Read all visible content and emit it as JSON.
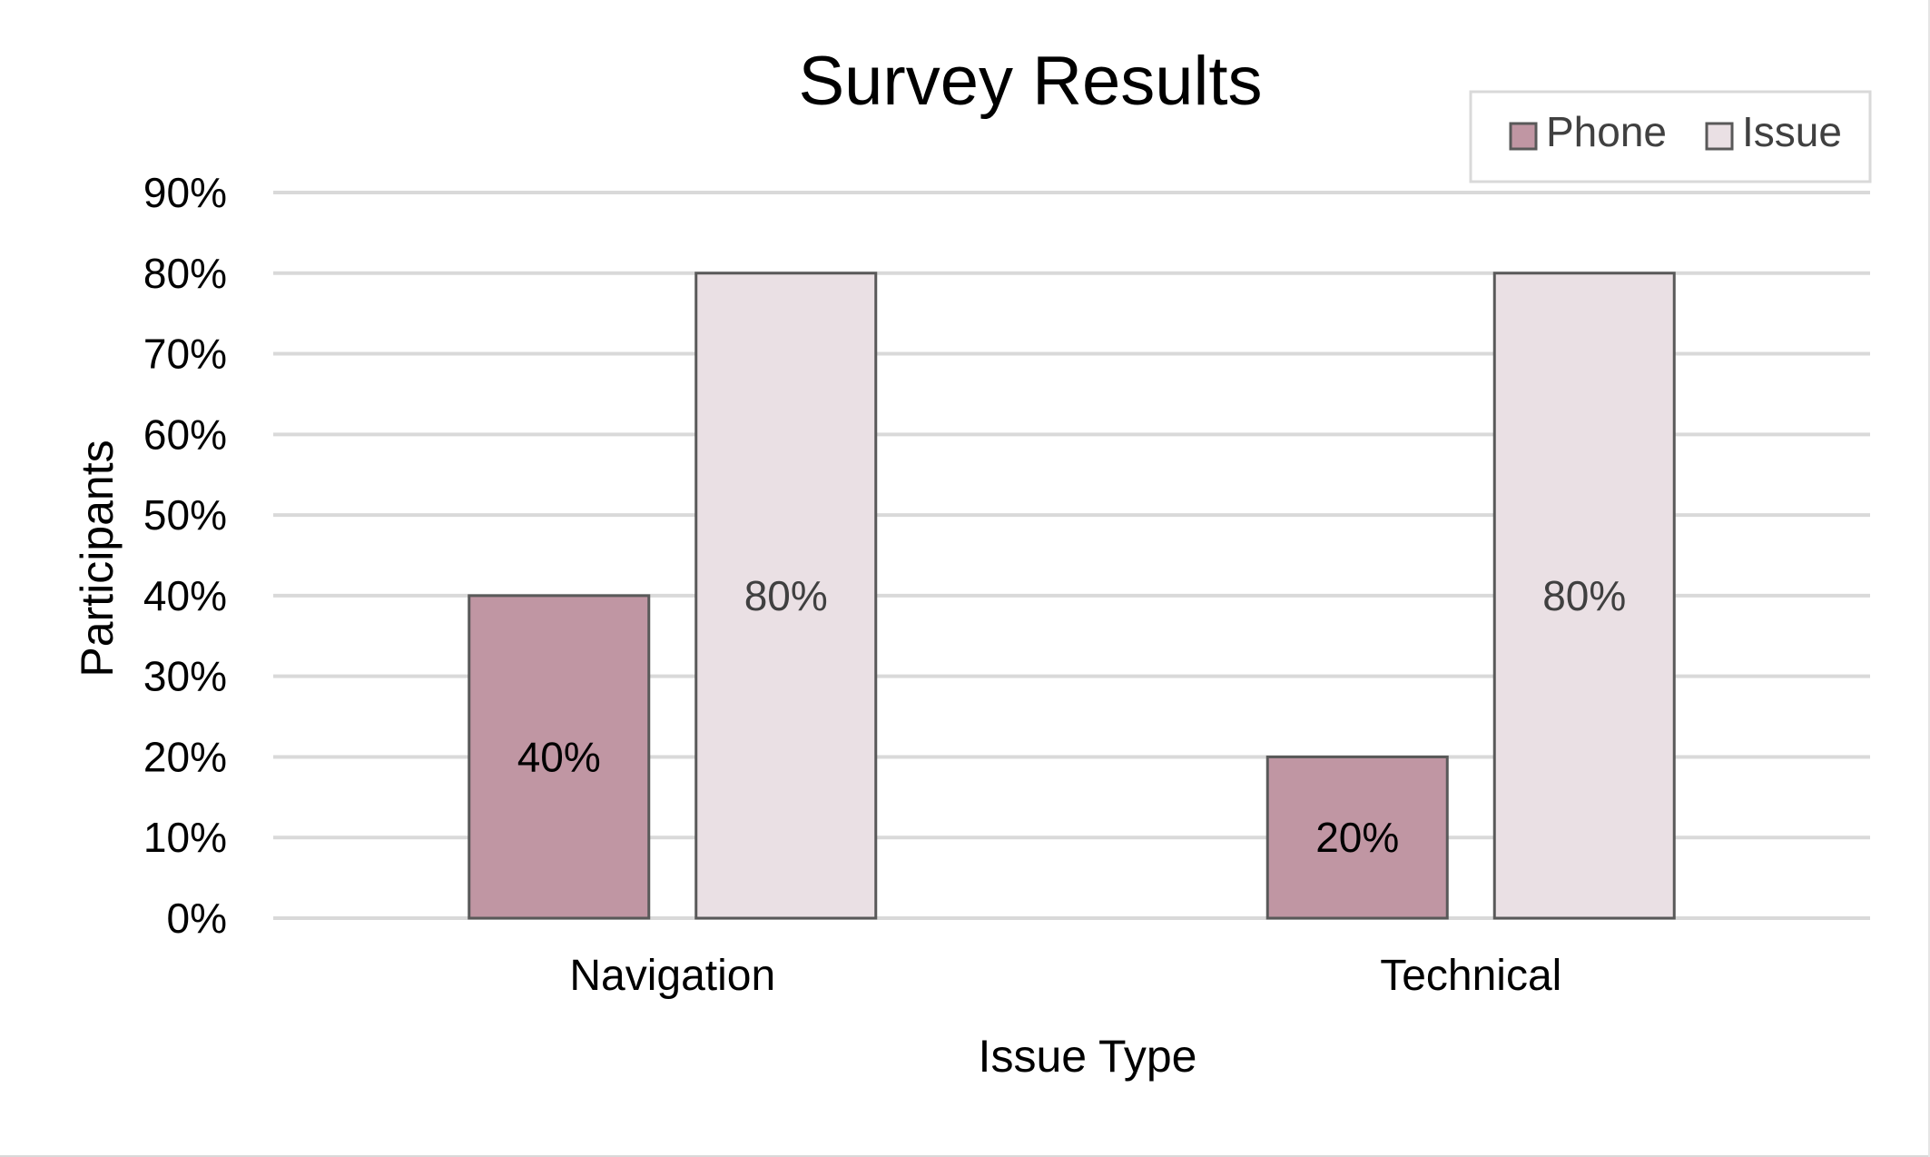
{
  "chart_data": {
    "type": "bar",
    "title": "Survey Results",
    "xlabel": "Issue Type",
    "ylabel": "Participants",
    "categories": [
      "Navigation",
      "Technical"
    ],
    "series": [
      {
        "name": "Phone",
        "values": [
          0.4,
          0.2
        ],
        "labels": [
          "40%",
          "20%"
        ],
        "color": "#c096a3",
        "label_color": "#000000"
      },
      {
        "name": "Issue",
        "values": [
          0.8,
          0.8
        ],
        "labels": [
          "80%",
          "80%"
        ],
        "color": "#eae0e4",
        "label_color": "#404040"
      }
    ],
    "ylim": [
      0,
      0.9
    ],
    "yticks": [
      0,
      0.1,
      0.2,
      0.3,
      0.4,
      0.5,
      0.6,
      0.7,
      0.8,
      0.9
    ],
    "ytick_labels": [
      "0%",
      "10%",
      "20%",
      "30%",
      "40%",
      "50%",
      "60%",
      "70%",
      "80%",
      "90%"
    ],
    "grid": true,
    "legend_position": "top-right",
    "gridline_color": "#d9d9d9",
    "bar_outline_color": "#595959"
  }
}
